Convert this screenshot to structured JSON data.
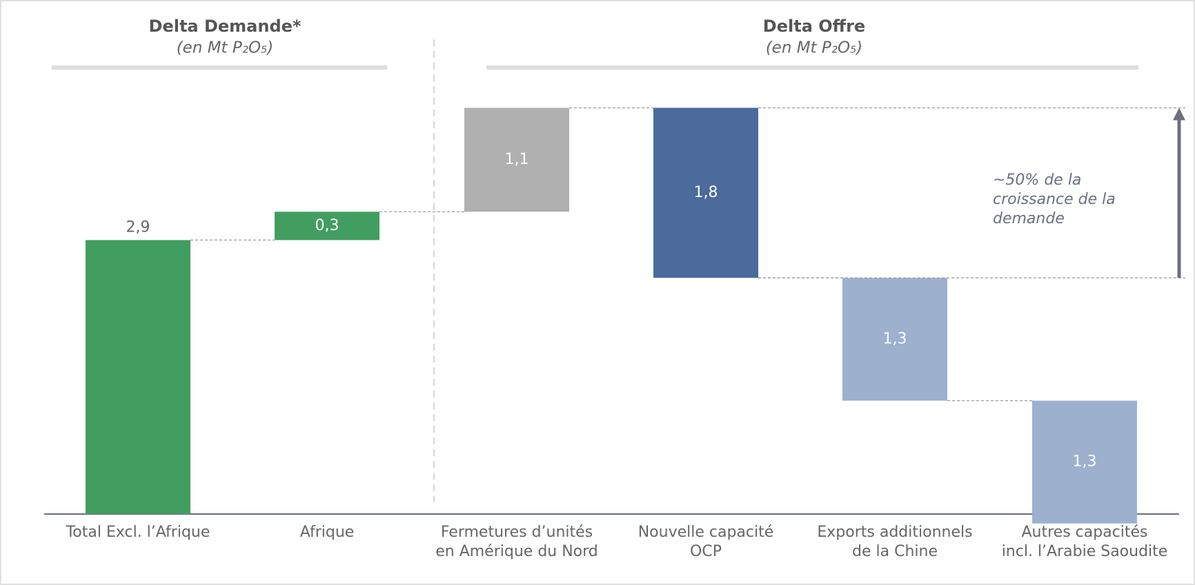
{
  "chart_data": {
    "type": "waterfall",
    "headers": [
      {
        "title": "Delta Demande*",
        "subtitle": "(en Mt P₂O₅)"
      },
      {
        "title": "Delta Offre",
        "subtitle": "(en Mt P₂O₅)"
      }
    ],
    "categories": [
      [
        "Total Excl. l’Afrique"
      ],
      [
        "Afrique"
      ],
      [
        "Fermetures d’unités",
        "en Amérique du Nord"
      ],
      [
        "Nouvelle capacité",
        "OCP"
      ],
      [
        "Exports additionnels",
        "de la Chine"
      ],
      [
        "Autres capacités",
        "incl. l’Arabie Saoudite"
      ]
    ],
    "values": [
      2.9,
      0.3,
      1.1,
      1.8,
      1.3,
      1.3
    ],
    "value_labels": [
      "2,9",
      "0,3",
      "1,1",
      "1,8",
      "1,3",
      "1,3"
    ],
    "directions": [
      "up",
      "up",
      "up",
      "down",
      "down",
      "down"
    ],
    "colors": [
      "#429d61",
      "#429d61",
      "#b0b0b0",
      "#4a6b9b",
      "#9db0ce",
      "#9db0ce"
    ],
    "annotation": [
      "~50% de la",
      "croissance de la",
      "demande"
    ]
  }
}
